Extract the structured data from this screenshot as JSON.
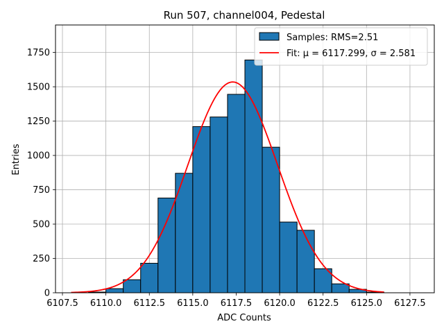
{
  "chart_data": {
    "type": "bar",
    "title": "Run 507, channel004, Pedestal",
    "xlabel": "ADC Counts",
    "ylabel": "Entries",
    "xlim": [
      6107.1,
      6128.9
    ],
    "ylim": [
      0,
      1950
    ],
    "x_ticks": [
      "6107.5",
      "6110.0",
      "6112.5",
      "6115.0",
      "6117.5",
      "6120.0",
      "6122.5",
      "6125.0",
      "6127.5"
    ],
    "x_tick_values": [
      6107.5,
      6110.0,
      6112.5,
      6115.0,
      6117.5,
      6120.0,
      6122.5,
      6125.0,
      6127.5
    ],
    "y_ticks": [
      "0",
      "250",
      "500",
      "750",
      "1000",
      "1250",
      "1500",
      "1750"
    ],
    "y_tick_values": [
      0,
      250,
      500,
      750,
      1000,
      1250,
      1500,
      1750
    ],
    "grid": true,
    "legend_position": "top-right",
    "series": [
      {
        "name": "Samples: RMS=2.51",
        "kind": "histogram",
        "color": "#1f77b4",
        "edgecolor": "#000000",
        "bins": [
          {
            "left": 6109.0,
            "right": 6110.0,
            "value": 5
          },
          {
            "left": 6110.0,
            "right": 6111.0,
            "value": 30
          },
          {
            "left": 6111.0,
            "right": 6112.0,
            "value": 95
          },
          {
            "left": 6112.0,
            "right": 6113.0,
            "value": 215
          },
          {
            "left": 6113.0,
            "right": 6114.0,
            "value": 690
          },
          {
            "left": 6114.0,
            "right": 6115.0,
            "value": 870
          },
          {
            "left": 6115.0,
            "right": 6116.0,
            "value": 1210
          },
          {
            "left": 6116.0,
            "right": 6117.0,
            "value": 1280
          },
          {
            "left": 6117.0,
            "right": 6118.0,
            "value": 1445
          },
          {
            "left": 6118.0,
            "right": 6119.0,
            "value": 1695
          },
          {
            "left": 6119.0,
            "right": 6120.0,
            "value": 1060
          },
          {
            "left": 6120.0,
            "right": 6121.0,
            "value": 515
          },
          {
            "left": 6121.0,
            "right": 6122.0,
            "value": 455
          },
          {
            "left": 6122.0,
            "right": 6123.0,
            "value": 175
          },
          {
            "left": 6123.0,
            "right": 6124.0,
            "value": 65
          },
          {
            "left": 6124.0,
            "right": 6125.0,
            "value": 25
          },
          {
            "left": 6125.0,
            "right": 6126.0,
            "value": 5
          }
        ]
      },
      {
        "name": "Fit: μ = 6117.299, σ = 2.581",
        "kind": "gaussian",
        "color": "#ff0000",
        "mu": 6117.299,
        "sigma": 2.581,
        "amplitude": 1535,
        "x_range": [
          6108.0,
          6126.0
        ]
      }
    ]
  }
}
